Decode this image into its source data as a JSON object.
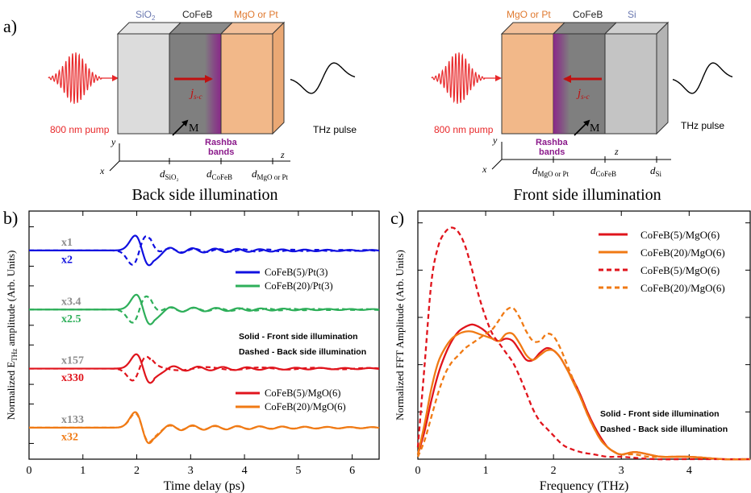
{
  "figure": {
    "panel_a": {
      "label": "a)",
      "back": {
        "caption": "Back side illumination",
        "layer_labels": [
          "SiO",
          "CoFeB",
          "MgO or Pt"
        ],
        "sio2_sub": "2",
        "pump_label": "800 nm pump",
        "thz_label": "THz pulse",
        "current_label": "j",
        "current_sub": "s-c",
        "m_label": "M",
        "rashba_line1": "Rashba",
        "rashba_line2": "bands",
        "axis_y": "y",
        "axis_x": "x",
        "axis_z": "z",
        "d_labels": [
          {
            "main": "d",
            "sub": "SiO₂"
          },
          {
            "main": "d",
            "sub": "CoFeB"
          },
          {
            "main": "d",
            "sub": "MgO or Pt"
          }
        ]
      },
      "front": {
        "caption": "Front side illumination",
        "layer_labels": [
          "MgO or Pt",
          "CoFeB",
          "Si"
        ],
        "pump_label": "800 nm pump",
        "thz_label": "THz pulse",
        "current_label": "j",
        "current_sub": "s-c",
        "m_label": "M",
        "rashba_line1": "Rashba",
        "rashba_line2": "bands",
        "axis_y": "y",
        "axis_x": "x",
        "axis_z": "z",
        "d_labels": [
          {
            "main": "d",
            "sub": "MgO or Pt"
          },
          {
            "main": "d",
            "sub": "CoFeB"
          },
          {
            "main": "d",
            "sub": "Si"
          }
        ]
      },
      "colors": {
        "pump": "#e8282a",
        "sio2": "#6a78b0",
        "mgo": "#e07a30",
        "rashba": "#8b1a8b",
        "current": "#c01010"
      }
    }
  },
  "chart_data": [
    {
      "panel": "b)",
      "type": "line",
      "xlabel": "Time delay (ps)",
      "ylabel_prefix": "Normalized E",
      "ylabel_sub": "THz",
      "ylabel_suffix": " amplitude (Arb. Units)",
      "xlim": [
        0,
        6.5
      ],
      "xticks": [
        "0",
        "1",
        "2",
        "3",
        "4",
        "5",
        "6"
      ],
      "xtick_values": [
        0,
        1,
        2,
        3,
        4,
        5,
        6
      ],
      "offsets": [
        4.5,
        3.0,
        1.5,
        0.0
      ],
      "ylim": [
        -0.8,
        5.5
      ],
      "multipliers": [
        {
          "solid": "x2",
          "dashed": "x1",
          "offset": 4.5,
          "color": "#1010e0"
        },
        {
          "solid": "x2.5",
          "dashed": "x3.4",
          "offset": 3.0,
          "color": "#2eaf5a"
        },
        {
          "solid": "x330",
          "dashed": "x157",
          "offset": 1.5,
          "color": "#e0141c"
        },
        {
          "solid": "x32",
          "dashed": "x133",
          "offset": 0.0,
          "color": "#f07a14"
        }
      ],
      "legend": [
        {
          "name": "CoFeB(5)/Pt(3)",
          "color": "#1010e0"
        },
        {
          "name": "CoFeB(20)/Pt(3)",
          "color": "#2eaf5a"
        },
        {
          "name": "CoFeB(5)/MgO(6)",
          "color": "#e0141c"
        },
        {
          "name": "CoFeB(20)/MgO(6)",
          "color": "#f07a14"
        }
      ],
      "note_line1": "Solid - Front side illumination",
      "note_line2": "Dashed - Back side illumination",
      "series": [
        {
          "name": "CoFeB(5)/Pt(3)",
          "style": "solid",
          "color": "#1010e0",
          "offset": 4.5,
          "t0": 2.1,
          "amp": 0.62,
          "decay": 0.55,
          "freq": 2.4,
          "tail_amp": 0.08
        },
        {
          "name": "CoFeB(5)/Pt(3)",
          "style": "dashed",
          "color": "#1010e0",
          "offset": 4.5,
          "t0": 2.05,
          "amp": -0.6,
          "decay": 0.6,
          "freq": 2.2,
          "tail_amp": 0.06
        },
        {
          "name": "CoFeB(20)/Pt(3)",
          "style": "solid",
          "color": "#2eaf5a",
          "offset": 3.0,
          "t0": 2.12,
          "amp": 0.62,
          "decay": 0.55,
          "freq": 2.4,
          "tail_amp": 0.07
        },
        {
          "name": "CoFeB(20)/Pt(3)",
          "style": "dashed",
          "color": "#2eaf5a",
          "offset": 3.0,
          "t0": 2.05,
          "amp": -0.55,
          "decay": 0.6,
          "freq": 2.2,
          "tail_amp": 0.06
        },
        {
          "name": "CoFeB(5)/MgO(6)",
          "style": "solid",
          "color": "#e0141c",
          "offset": 1.5,
          "t0": 2.12,
          "amp": 0.6,
          "decay": 0.6,
          "freq": 2.2,
          "tail_amp": 0.07
        },
        {
          "name": "CoFeB(5)/MgO(6)",
          "style": "dashed",
          "color": "#e0141c",
          "offset": 1.5,
          "t0": 2.05,
          "amp": -0.5,
          "decay": 0.9,
          "freq": 1.0,
          "tail_amp": 0.05
        },
        {
          "name": "CoFeB(20)/MgO(6)",
          "style": "solid",
          "color": "#f07a14",
          "offset": 0.0,
          "t0": 2.1,
          "amp": 0.65,
          "decay": 0.6,
          "freq": 2.4,
          "tail_amp": 0.08
        },
        {
          "name": "CoFeB(20)/MgO(6)",
          "style": "dashed",
          "color": "#f07a14",
          "offset": 0.0,
          "t0": 2.1,
          "amp": 0.6,
          "decay": 0.65,
          "freq": 2.4,
          "tail_amp": 0.06
        }
      ]
    },
    {
      "panel": "c)",
      "type": "line",
      "xlabel": "Frequency (THz)",
      "ylabel": "Normalized FFT Amplitude (Arb. Units)",
      "xlim": [
        0,
        4.9
      ],
      "ylim": [
        0,
        1.05
      ],
      "xticks": [
        "0",
        "1",
        "2",
        "3",
        "4"
      ],
      "xtick_values": [
        0,
        1,
        2,
        3,
        4
      ],
      "legend": [
        {
          "name": "CoFeB(5)/MgO(6)",
          "style": "solid",
          "color": "#e0141c"
        },
        {
          "name": "CoFeB(20)/MgO(6)",
          "style": "solid",
          "color": "#f07a14"
        },
        {
          "name": "CoFeB(5)/MgO(6)",
          "style": "dashed",
          "color": "#e0141c"
        },
        {
          "name": "CoFeB(20)/MgO(6)",
          "style": "dashed",
          "color": "#f07a14"
        }
      ],
      "note_line1": "Solid - Front side illumination",
      "note_line2": "Dashed - Back side illumination",
      "series": [
        {
          "name": "CoFeB(5)/MgO(6)",
          "style": "solid",
          "color": "#e0141c",
          "x": [
            0,
            0.1,
            0.2,
            0.3,
            0.4,
            0.5,
            0.6,
            0.7,
            0.8,
            0.9,
            1.0,
            1.1,
            1.2,
            1.3,
            1.4,
            1.5,
            1.6,
            1.7,
            1.8,
            1.9,
            2.0,
            2.1,
            2.2,
            2.3,
            2.4,
            2.5,
            2.6,
            2.7,
            2.8,
            2.9,
            3.0,
            3.2,
            3.4,
            3.6,
            4.0,
            4.5,
            4.9
          ],
          "y": [
            0.02,
            0.12,
            0.25,
            0.36,
            0.44,
            0.5,
            0.54,
            0.56,
            0.57,
            0.56,
            0.54,
            0.51,
            0.5,
            0.51,
            0.5,
            0.46,
            0.42,
            0.42,
            0.45,
            0.47,
            0.46,
            0.43,
            0.38,
            0.33,
            0.27,
            0.2,
            0.14,
            0.09,
            0.05,
            0.03,
            0.02,
            0.03,
            0.02,
            0.01,
            0.01,
            0.0,
            0.0
          ]
        },
        {
          "name": "CoFeB(20)/MgO(6)",
          "style": "solid",
          "color": "#f07a14",
          "x": [
            0,
            0.1,
            0.2,
            0.3,
            0.4,
            0.5,
            0.6,
            0.7,
            0.8,
            0.9,
            1.0,
            1.1,
            1.2,
            1.3,
            1.4,
            1.5,
            1.6,
            1.7,
            1.8,
            1.9,
            2.0,
            2.1,
            2.2,
            2.3,
            2.4,
            2.5,
            2.6,
            2.7,
            2.8,
            2.9,
            3.0,
            3.2,
            3.4,
            3.6,
            4.0,
            4.5,
            4.9
          ],
          "y": [
            0.02,
            0.15,
            0.3,
            0.41,
            0.47,
            0.51,
            0.53,
            0.54,
            0.54,
            0.53,
            0.52,
            0.51,
            0.5,
            0.53,
            0.53,
            0.49,
            0.44,
            0.42,
            0.44,
            0.46,
            0.46,
            0.43,
            0.38,
            0.32,
            0.26,
            0.19,
            0.13,
            0.08,
            0.05,
            0.03,
            0.02,
            0.03,
            0.02,
            0.01,
            0.01,
            0.0,
            0.0
          ]
        },
        {
          "name": "CoFeB(5)/MgO(6)",
          "style": "dashed",
          "color": "#e0141c",
          "x": [
            0,
            0.1,
            0.2,
            0.3,
            0.4,
            0.5,
            0.6,
            0.7,
            0.8,
            0.9,
            1.0,
            1.1,
            1.2,
            1.3,
            1.4,
            1.5,
            1.6,
            1.7,
            1.8,
            1.9,
            2.0,
            2.1,
            2.2,
            2.4,
            2.6,
            2.8,
            3.0,
            3.5,
            4.0,
            4.9
          ],
          "y": [
            0.05,
            0.4,
            0.75,
            0.9,
            0.96,
            0.98,
            0.96,
            0.9,
            0.8,
            0.69,
            0.6,
            0.53,
            0.49,
            0.45,
            0.41,
            0.35,
            0.28,
            0.21,
            0.16,
            0.13,
            0.1,
            0.07,
            0.05,
            0.03,
            0.02,
            0.01,
            0.01,
            0.0,
            0.0,
            0.0
          ]
        },
        {
          "name": "CoFeB(20)/MgO(6)",
          "style": "dashed",
          "color": "#f07a14",
          "x": [
            0,
            0.1,
            0.2,
            0.3,
            0.4,
            0.5,
            0.6,
            0.7,
            0.8,
            0.9,
            1.0,
            1.1,
            1.2,
            1.3,
            1.4,
            1.5,
            1.6,
            1.7,
            1.8,
            1.9,
            2.0,
            2.1,
            2.2,
            2.3,
            2.4,
            2.5,
            2.6,
            2.7,
            2.8,
            2.9,
            3.0,
            3.2,
            3.4,
            3.6,
            4.0,
            4.5,
            4.9
          ],
          "y": [
            0.01,
            0.08,
            0.18,
            0.28,
            0.36,
            0.41,
            0.44,
            0.47,
            0.49,
            0.51,
            0.53,
            0.55,
            0.59,
            0.63,
            0.64,
            0.6,
            0.54,
            0.5,
            0.5,
            0.53,
            0.52,
            0.47,
            0.4,
            0.33,
            0.26,
            0.19,
            0.13,
            0.08,
            0.05,
            0.03,
            0.02,
            0.02,
            0.01,
            0.01,
            0.01,
            0.0,
            0.0
          ]
        }
      ]
    }
  ]
}
